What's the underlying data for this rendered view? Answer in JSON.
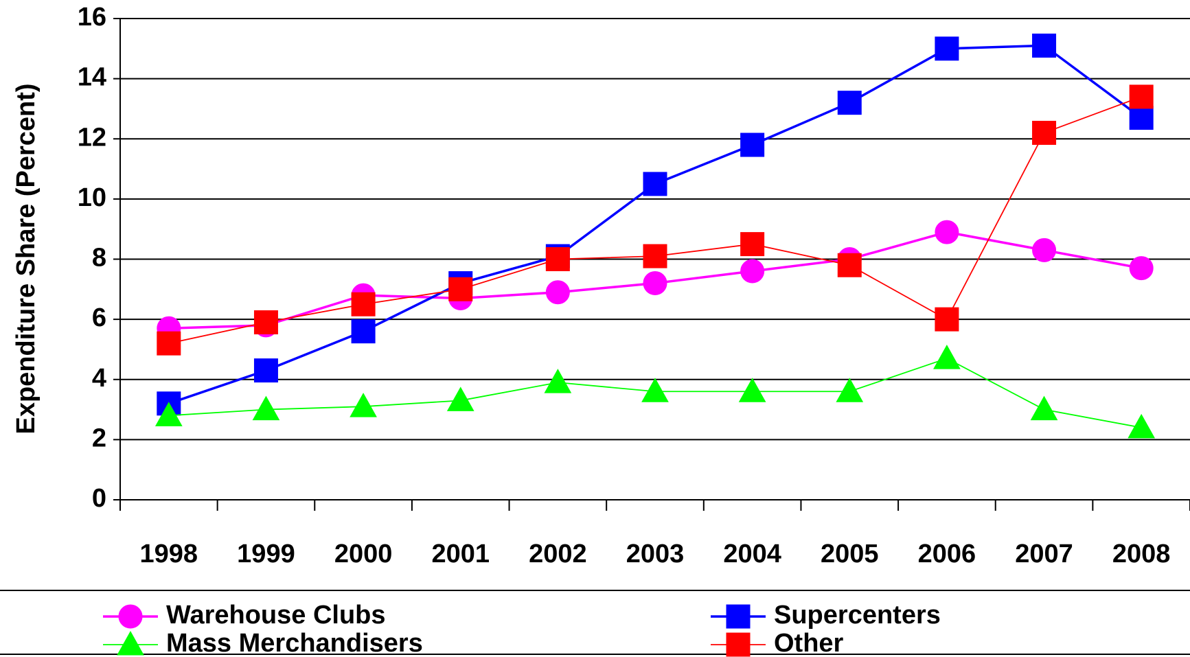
{
  "chart_data": {
    "type": "line",
    "y_label": "Expenditure Share (Percent)",
    "categories": [
      "1998",
      "1999",
      "2000",
      "2001",
      "2002",
      "2003",
      "2004",
      "2005",
      "2006",
      "2007",
      "2008"
    ],
    "series": [
      {
        "name": "Warehouse Clubs",
        "color": "#ff00ff",
        "marker": "circle",
        "values": [
          5.7,
          5.8,
          6.8,
          6.7,
          6.9,
          7.2,
          7.6,
          8.0,
          8.9,
          8.3,
          7.7
        ]
      },
      {
        "name": "Supercenters",
        "color": "#0000ff",
        "marker": "square",
        "values": [
          3.2,
          4.3,
          5.6,
          7.2,
          8.1,
          10.5,
          11.8,
          13.2,
          15.0,
          15.1,
          12.7
        ]
      },
      {
        "name": "Mass Merchandisers",
        "color": "#00ff00",
        "marker": "triangle",
        "values": [
          2.8,
          3.0,
          3.1,
          3.3,
          3.9,
          3.6,
          3.6,
          3.6,
          4.7,
          3.0,
          2.4
        ]
      },
      {
        "name": "Other",
        "color": "#ff0000",
        "marker": "square",
        "values": [
          5.2,
          5.9,
          6.5,
          7.0,
          8.0,
          8.1,
          8.5,
          7.8,
          6.0,
          12.2,
          13.4
        ]
      }
    ],
    "ylim": [
      0,
      16
    ],
    "yticks": [
      0,
      2,
      4,
      6,
      8,
      10,
      12,
      14,
      16
    ],
    "grid": true
  }
}
